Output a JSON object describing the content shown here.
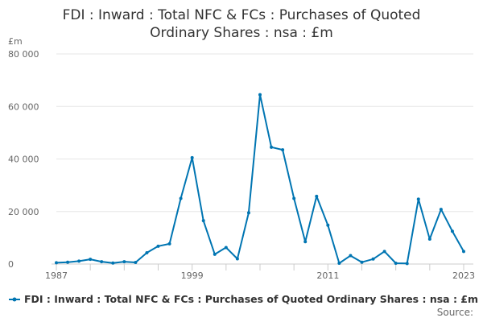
{
  "chart_data": {
    "type": "line",
    "title_lines": [
      "FDI : Inward : Total NFC & FCs : Purchases of Quoted",
      "Ordinary Shares : nsa : £m"
    ],
    "unit_label": "£m",
    "xlabel": "",
    "ylabel": "",
    "x": [
      1987,
      1988,
      1989,
      1990,
      1991,
      1992,
      1993,
      1994,
      1995,
      1996,
      1997,
      1998,
      1999,
      2000,
      2001,
      2002,
      2003,
      2004,
      2005,
      2006,
      2007,
      2008,
      2009,
      2010,
      2011,
      2012,
      2013,
      2014,
      2015,
      2016,
      2017,
      2018,
      2019,
      2020,
      2021,
      2022,
      2023
    ],
    "series": [
      {
        "name": "FDI : Inward : Total NFC & FCs : Purchases of Quoted Ordinary Shares : nsa : £m",
        "color": "#0075b2",
        "values": [
          500,
          700,
          1100,
          1800,
          900,
          400,
          900,
          600,
          4300,
          6800,
          7700,
          25000,
          40500,
          16500,
          3700,
          6300,
          2000,
          19500,
          64500,
          44500,
          43500,
          25000,
          8500,
          25800,
          14800,
          300,
          3200,
          700,
          1900,
          4800,
          300,
          200,
          24700,
          9500,
          20800,
          12500,
          4800
        ]
      }
    ],
    "xlim": [
      1987,
      2023
    ],
    "ylim": [
      0,
      80000
    ],
    "yticks": [
      0,
      20000,
      40000,
      60000,
      80000
    ],
    "ytick_labels": [
      "0",
      "20 000",
      "40 000",
      "60 000",
      "80 000"
    ],
    "xticks": [
      1987,
      1999,
      2011,
      2023
    ],
    "xtick_labels": [
      "1987",
      "1999",
      "2011",
      "2023"
    ],
    "grid": true,
    "legend_position": "bottom",
    "source_label": "Source:"
  }
}
